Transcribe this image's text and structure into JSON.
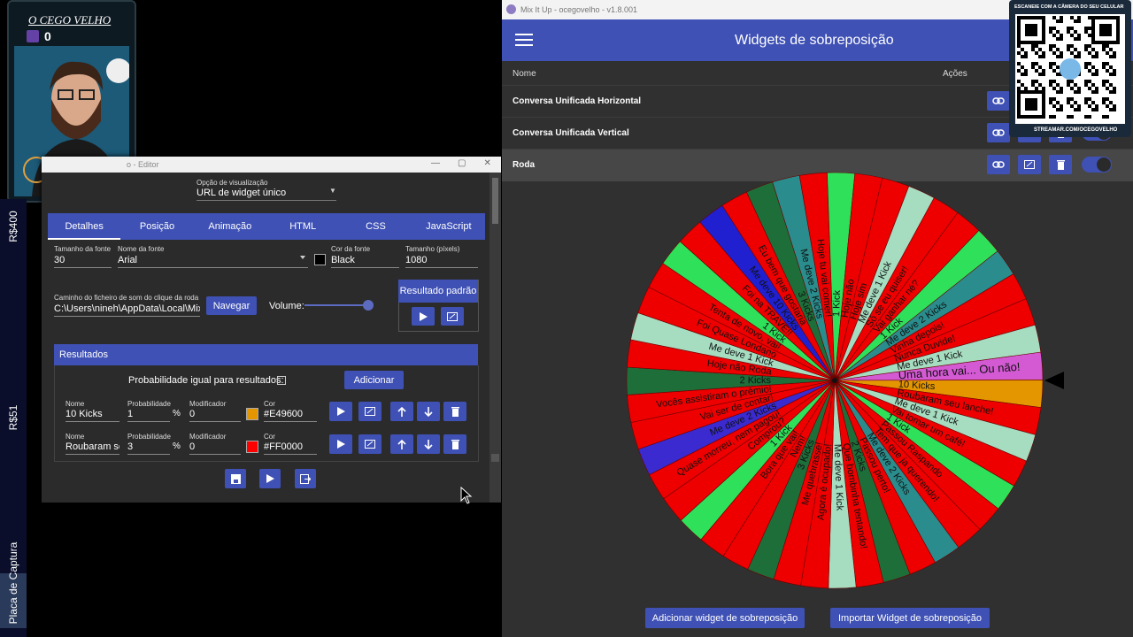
{
  "stream_overlay": {
    "channel_name": "O CEGO VELHO",
    "viewer_count": 0,
    "side_labels": [
      "R$400",
      "R$51",
      "Placa de Captura"
    ],
    "qr_top": "ESCANEIE COM A CÂMERA DO SEU CELULAR",
    "qr_bottom": "STREAMAR.COM/OCEGOVELHO"
  },
  "editor": {
    "title": "o - Editor",
    "view_option_label": "Opção de visualização",
    "view_option_value": "URL de widget único",
    "tabs": [
      "Detalhes",
      "Posição",
      "Animação",
      "HTML",
      "CSS",
      "JavaScript"
    ],
    "fields": [
      {
        "label": "Tamanho da fonte",
        "value": 30
      },
      {
        "label": "Nome da fonte",
        "value": "Arial"
      },
      {
        "label": "Cor da fonte",
        "value": "Black"
      },
      {
        "label": "Tamanho (píxels)",
        "value": 1080
      }
    ],
    "sound_path_label": "Caminho do ficheiro de som do clique da roda",
    "sound_path_value": "C:\\Users\\nineh\\AppData\\Local\\MixItl",
    "browse_button": "Navegar",
    "volume_label": "Volume:",
    "default_result_title": "Resultado padrão",
    "results_title": "Resultados",
    "equal_probability_label": "Probabilidade igual para resultados:",
    "add_button": "Adicionar",
    "column_labels": {
      "name": "Nome",
      "probability": "Probabilidade",
      "modifier": "Modificador",
      "color": "Cor"
    },
    "percent_sign": "%",
    "results": [
      {
        "name": "10 Kicks",
        "probability": 1,
        "modifier": 0,
        "color": "#E49600"
      },
      {
        "name": "Roubaram sei",
        "probability": 3,
        "modifier": 0,
        "color": "#FF0000"
      }
    ]
  },
  "mixitup": {
    "window_title": "Mix It Up - ocegovelho - v1.8.001",
    "page_title": "Widgets de sobreposição",
    "column_name": "Nome",
    "column_actions": "Ações",
    "widgets": [
      "Conversa Unificada Horizontal",
      "Conversa Unificada Vertical",
      "Roda"
    ],
    "add_button": "Adicionar widget de sobreposição",
    "import_button": "Importar Widget de sobreposição",
    "wheel": {
      "slices": [
        {
          "label": "Uma hora vai... Ou não!",
          "color": "#d45ad4"
        },
        {
          "label": "10 Kicks",
          "color": "#e49600"
        },
        {
          "label": "Roubaram seu lanche!",
          "color": "#ee0000"
        },
        {
          "label": "Me deve 1 Kick",
          "color": "#a6dcc0"
        },
        {
          "label": "Vai tomar um café!",
          "color": "#ee0000"
        },
        {
          "label": "1 Kick",
          "color": "#2ee05a"
        },
        {
          "label": "Passou Raspando",
          "color": "#ee0000"
        },
        {
          "label": "Tem que ja querendo!",
          "color": "#ee0000"
        },
        {
          "label": "Me deve 2 Kicks",
          "color": "#2a8c8c"
        },
        {
          "label": "Passou perto!",
          "color": "#ee0000"
        },
        {
          "label": "2 Kicks",
          "color": "#1e6e3a"
        },
        {
          "label": "Que bombinha tentando!",
          "color": "#ee0000"
        },
        {
          "label": "Me deve 1 Kick",
          "color": "#a6dcc0"
        },
        {
          "label": "Agora é ocupado!",
          "color": "#ee0000"
        },
        {
          "label": "Me quebrasse!",
          "color": "#ee0000"
        },
        {
          "label": "3 Kicks",
          "color": "#1e6e3a"
        },
        {
          "label": "Nem!",
          "color": "#ee0000"
        },
        {
          "label": "Bora que vai!",
          "color": "#ee0000"
        },
        {
          "label": "1 Kick",
          "color": "#2ee05a"
        },
        {
          "label": "Comprou?",
          "color": "#ee0000"
        },
        {
          "label": "Quase morreu, nem pagou!",
          "color": "#ee0000"
        },
        {
          "label": "Me deve 2 Kicks",
          "color": "#3a2ad0"
        },
        {
          "label": "Vai ser de contar!",
          "color": "#ee0000"
        },
        {
          "label": "Vocês assistiram o prêmio!",
          "color": "#ee0000"
        },
        {
          "label": "2 Kicks",
          "color": "#1e6e3a"
        },
        {
          "label": "Hoje não Roda",
          "color": "#ee0000"
        },
        {
          "label": "Me deve 1 Kick",
          "color": "#a6dcc0"
        },
        {
          "label": "Foi Quase Londano",
          "color": "#ee0000"
        },
        {
          "label": "Tenta de novo, vai!",
          "color": "#ee0000"
        },
        {
          "label": "1 Kick",
          "color": "#2ee05a"
        },
        {
          "label": "Foi na TRAVE!!",
          "color": "#ee0000"
        },
        {
          "label": "Me deve 10 Kicks",
          "color": "#2020d0"
        },
        {
          "label": "Eu bem que gostaria",
          "color": "#ee0000"
        },
        {
          "label": "3 Kicks",
          "color": "#1e6e3a"
        },
        {
          "label": "Me deve 2 Kicks",
          "color": "#2a8c8c"
        },
        {
          "label": "Hoje tu vai comer!",
          "color": "#ee0000"
        },
        {
          "label": "1 Kick",
          "color": "#2ee05a"
        },
        {
          "label": "Hoje não",
          "color": "#ee0000"
        },
        {
          "label": "Hoje sim",
          "color": "#ee0000"
        },
        {
          "label": "Me deve 1 Kick",
          "color": "#a6dcc0"
        },
        {
          "label": "Só se eu quiser!",
          "color": "#ee0000"
        },
        {
          "label": "Vai ganhar né?",
          "color": "#ee0000"
        },
        {
          "label": "1 Kick",
          "color": "#2ee05a"
        },
        {
          "label": "Me deve 2 Kicks",
          "color": "#2a8c8c"
        },
        {
          "label": "Vinha depois!",
          "color": "#ee0000"
        },
        {
          "label": "Nunca Duvide!",
          "color": "#ee0000"
        },
        {
          "label": "Me deve 1 Kick",
          "color": "#a6dcc0"
        }
      ]
    }
  }
}
